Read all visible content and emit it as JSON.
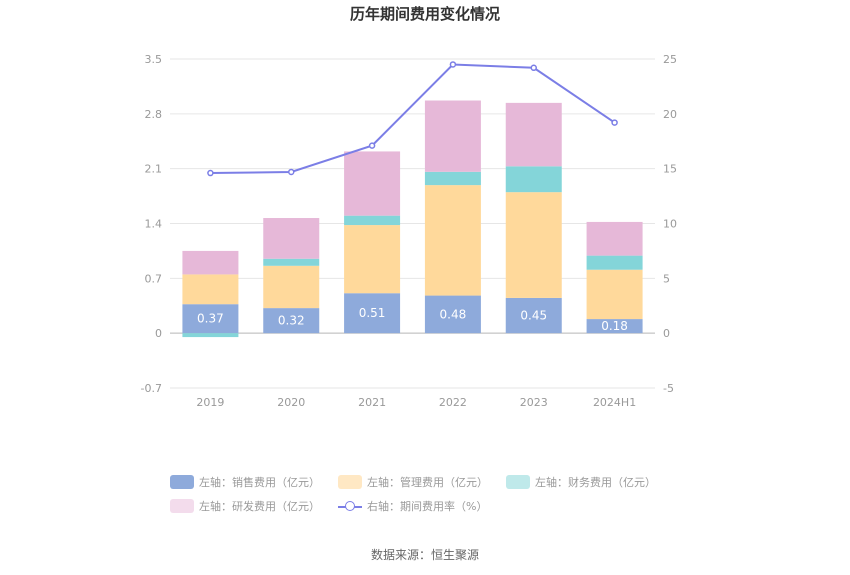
{
  "chart_data": {
    "type": "bar",
    "title": "历年期间费用变化情况",
    "categories": [
      "2019",
      "2020",
      "2021",
      "2022",
      "2023",
      "2024H1"
    ],
    "left_axis": {
      "ylim": [
        -0.7,
        3.5
      ],
      "ticks": [
        "3.5",
        "2.8",
        "2.1",
        "1.4",
        "0.7",
        "0",
        "-0.7"
      ],
      "tick_values": [
        3.5,
        2.8,
        2.1,
        1.4,
        0.7,
        0,
        -0.7
      ]
    },
    "right_axis": {
      "ylim": [
        -5,
        25
      ],
      "ticks": [
        "25",
        "20",
        "15",
        "10",
        "5",
        "0",
        "-5"
      ],
      "tick_values": [
        25,
        20,
        15,
        10,
        5,
        0,
        -5
      ]
    },
    "series": [
      {
        "name": "左轴：销售费用（亿元）",
        "type": "bar",
        "color": "#8eaadb",
        "values": [
          0.37,
          0.32,
          0.51,
          0.48,
          0.45,
          0.18
        ],
        "labels": [
          "0.37",
          "0.32",
          "0.51",
          "0.48",
          "0.45",
          "0.18"
        ]
      },
      {
        "name": "左轴：管理费用（亿元）",
        "type": "bar",
        "color": "#ffd99b",
        "values": [
          0.38,
          0.54,
          0.87,
          1.41,
          1.35,
          0.63
        ]
      },
      {
        "name": "左轴：财务费用（亿元）",
        "type": "bar",
        "color": "#84d5d9",
        "values": [
          -0.05,
          0.09,
          0.12,
          0.17,
          0.33,
          0.18
        ]
      },
      {
        "name": "左轴：研发费用（亿元）",
        "type": "bar",
        "color": "#e6b8d8",
        "values": [
          0.3,
          0.52,
          0.82,
          0.91,
          0.81,
          0.43
        ]
      },
      {
        "name": "右轴：期间费用率（%）",
        "type": "line",
        "color": "#7b7ee6",
        "values": [
          14.6,
          14.7,
          17.1,
          24.5,
          24.2,
          19.2
        ]
      }
    ]
  },
  "source": "数据来源：恒生聚源"
}
